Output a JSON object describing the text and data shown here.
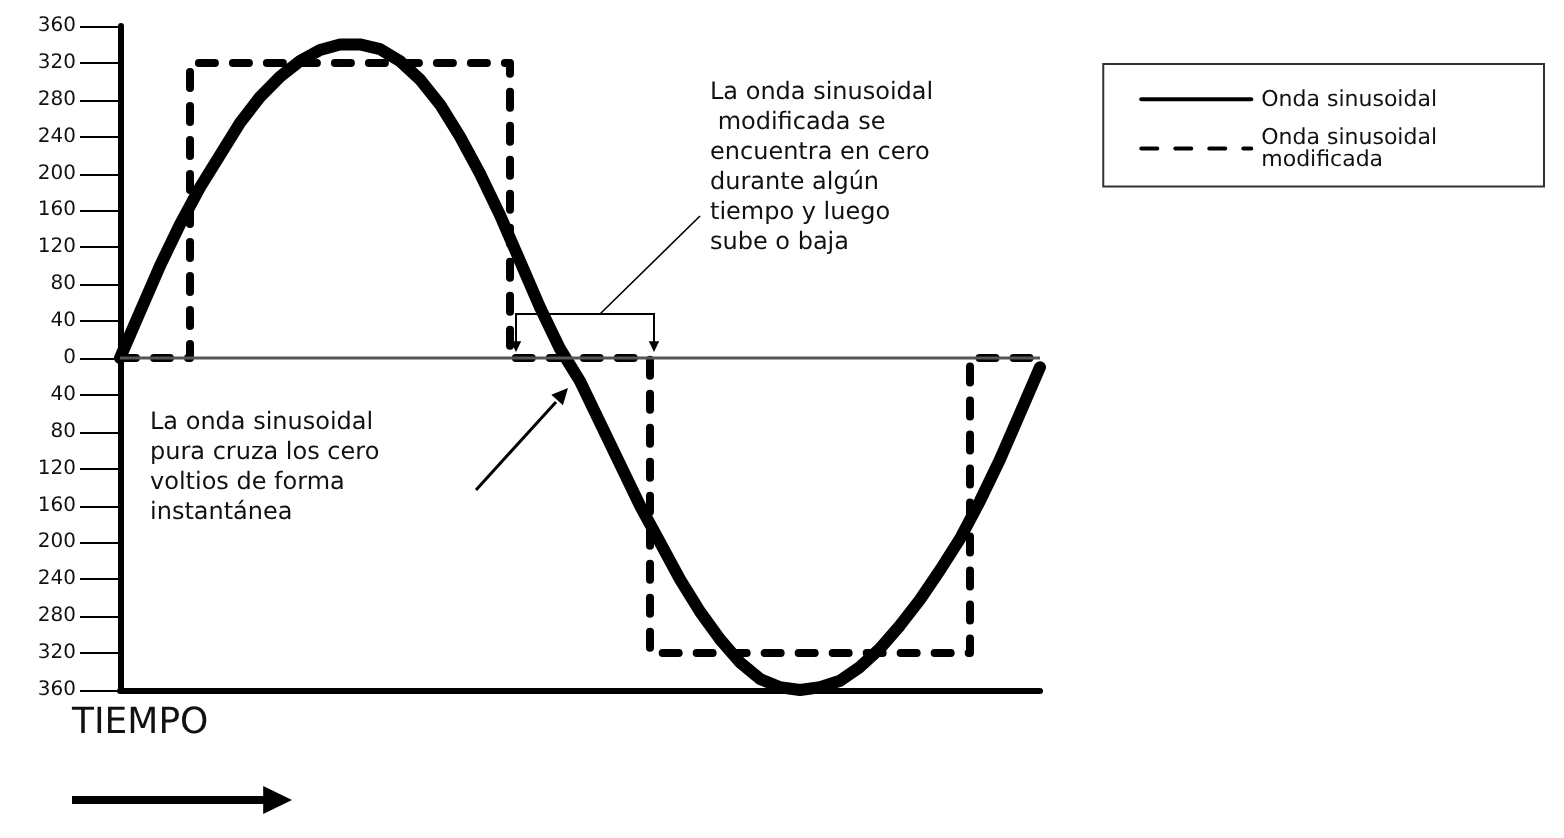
{
  "chart_data": {
    "type": "line",
    "xlabel": "TIEMPO",
    "categories": [
      null,
      null,
      null,
      null,
      null,
      null,
      null,
      null,
      null,
      null,
      null,
      null,
      null,
      null,
      null,
      null,
      null,
      null,
      null,
      null,
      null,
      null,
      null,
      null,
      null,
      null,
      null,
      null,
      null,
      null,
      null,
      null,
      null,
      null,
      null,
      null,
      null,
      null,
      null,
      null,
      null,
      null,
      null,
      null,
      null,
      null,
      null
    ],
    "ylim": [
      -360,
      360
    ],
    "yticks": [
      {
        "value": -360,
        "label": "360"
      },
      {
        "value": -320,
        "label": "320"
      },
      {
        "value": -280,
        "label": "280"
      },
      {
        "value": -240,
        "label": "240"
      },
      {
        "value": -200,
        "label": "200"
      },
      {
        "value": -160,
        "label": "160"
      },
      {
        "value": -120,
        "label": "120"
      },
      {
        "value": -80,
        "label": "80"
      },
      {
        "value": -40,
        "label": "40"
      },
      0,
      40,
      80,
      120,
      160,
      200,
      240,
      280,
      320,
      360
    ],
    "grid": false,
    "ref_lines": [
      {
        "axis": "y",
        "value": 0,
        "color": "#555555"
      }
    ],
    "legend": "top right",
    "marker": "none",
    "series": [
      {
        "name": "Onda sinusoidal",
        "color": "#000000",
        "line_style": "solid",
        "values": [
          0,
          50,
          100,
          145,
          185,
          220,
          255,
          283,
          305,
          322,
          334,
          340,
          340,
          335,
          322,
          302,
          275,
          240,
          200,
          155,
          105,
          55,
          10,
          -25,
          -70,
          -115,
          -160,
          -200,
          -240,
          -275,
          -305,
          -330,
          -348,
          -357,
          -360,
          -357,
          -350,
          -335,
          -315,
          -290,
          -262,
          -230,
          -196,
          -155,
          -110,
          -60,
          -10
        ]
      },
      {
        "name": "Onda sinusoidal modificada",
        "type": "step",
        "color": "#000000",
        "line_style": "dashed",
        "values": [
          0,
          0,
          0,
          0,
          320,
          320,
          320,
          320,
          320,
          320,
          320,
          320,
          320,
          320,
          320,
          320,
          320,
          320,
          320,
          320,
          0,
          0,
          0,
          0,
          0,
          0,
          0,
          -320,
          -320,
          -320,
          -320,
          -320,
          -320,
          -320,
          -320,
          -320,
          -320,
          -320,
          -320,
          -320,
          -320,
          -320,
          -320,
          0,
          0,
          0,
          0
        ]
      }
    ],
    "annotations": [
      "La onda sinusoidal modificada se encuentra en cero durante algún tiempo y luego sube o baja",
      "La onda sinusoidal pura cruza los cero voltios de forma instantánea"
    ]
  }
}
